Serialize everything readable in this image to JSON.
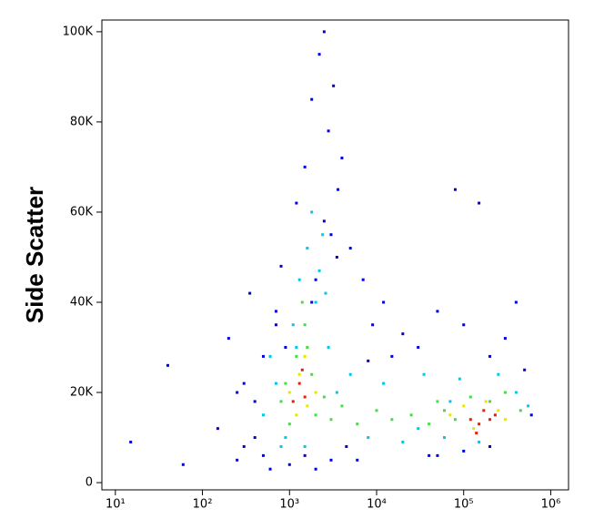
{
  "chart_data": {
    "type": "scatter",
    "y_label": "Side Scatter",
    "log_x": true,
    "xlim": [
      7,
      1600000
    ],
    "ylim": [
      -1600,
      102600
    ],
    "xticks": [
      {
        "value": 10,
        "label": "10¹"
      },
      {
        "value": 100,
        "label": "10²"
      },
      {
        "value": 1000,
        "label": "10³"
      },
      {
        "value": 10000,
        "label": "10⁴"
      },
      {
        "value": 100000,
        "label": "10⁵"
      },
      {
        "value": 1000000,
        "label": "10⁶"
      }
    ],
    "yticks": [
      0,
      {
        "value": 20000,
        "label": "20K"
      },
      {
        "value": 40000,
        "label": "40K"
      },
      {
        "value": 60000,
        "label": "60K"
      },
      {
        "value": 80000,
        "label": "80K"
      },
      {
        "value": 100000,
        "label": "100K"
      }
    ],
    "series": [
      {
        "color": "#0000dd",
        "x": [
          15,
          40,
          60,
          150,
          200,
          250,
          300,
          350,
          400,
          500,
          600,
          700,
          800,
          900,
          1200,
          1500,
          1800,
          2200,
          2500,
          2800,
          3200,
          3600,
          4000,
          5000,
          7000,
          9000,
          12000,
          20000,
          30000,
          50000,
          80000,
          100000,
          150000,
          200000,
          300000,
          400000,
          500000,
          600000,
          250,
          400,
          1000,
          2000,
          3000,
          2500,
          3500,
          1800,
          2000,
          3000,
          4500,
          8000,
          50000,
          100000,
          200000,
          300,
          500,
          700,
          1500,
          6000,
          15000,
          40000
        ],
        "values": [
          9000,
          26000,
          4000,
          12000,
          32000,
          20000,
          8000,
          42000,
          18000,
          6000,
          3000,
          38000,
          48000,
          30000,
          62000,
          70000,
          85000,
          95000,
          100000,
          78000,
          88000,
          65000,
          72000,
          52000,
          45000,
          35000,
          40000,
          33000,
          30000,
          38000,
          65000,
          35000,
          62000,
          28000,
          32000,
          40000,
          25000,
          15000,
          5000,
          10000,
          4000,
          3000,
          55000,
          58000,
          50000,
          40000,
          45000,
          5000,
          8000,
          27000,
          6000,
          7000,
          8000,
          22000,
          28000,
          35000,
          6000,
          5000,
          28000,
          6000
        ]
      },
      {
        "color": "#00c8e6",
        "x": [
          500,
          700,
          900,
          1100,
          1300,
          1600,
          2000,
          2400,
          2800,
          3500,
          1500,
          1800,
          2200,
          600,
          800,
          5000,
          8000,
          12000,
          20000,
          35000,
          60000,
          90000,
          150000,
          250000,
          400000,
          550000,
          30000,
          70000,
          1200,
          2600
        ],
        "values": [
          15000,
          22000,
          10000,
          35000,
          45000,
          52000,
          40000,
          55000,
          30000,
          20000,
          8000,
          60000,
          47000,
          28000,
          8000,
          24000,
          10000,
          22000,
          9000,
          24000,
          10000,
          23000,
          9000,
          24000,
          20000,
          17000,
          12000,
          18000,
          30000,
          42000
        ]
      },
      {
        "color": "#44dd44",
        "x": [
          800,
          1000,
          1200,
          1500,
          1800,
          2000,
          1400,
          2500,
          3000,
          4000,
          6000,
          10000,
          15000,
          25000,
          40000,
          60000,
          80000,
          120000,
          200000,
          300000,
          450000,
          1600,
          900,
          50000
        ],
        "values": [
          18000,
          13000,
          28000,
          35000,
          24000,
          15000,
          40000,
          19000,
          14000,
          17000,
          13000,
          16000,
          14000,
          15000,
          13000,
          16000,
          14000,
          19000,
          18000,
          20000,
          16000,
          30000,
          22000,
          18000
        ]
      },
      {
        "color": "#e6e600",
        "x": [
          1000,
          1300,
          1600,
          1200,
          2000,
          70000,
          100000,
          130000,
          180000,
          250000,
          300000,
          1500
        ],
        "values": [
          20000,
          24000,
          17000,
          15000,
          20000,
          15000,
          17000,
          12000,
          18000,
          16000,
          14000,
          28000
        ]
      },
      {
        "color": "#e62000",
        "x": [
          1100,
          1300,
          1500,
          120000,
          150000,
          170000,
          200000,
          140000,
          230000,
          1400
        ],
        "values": [
          18000,
          22000,
          19000,
          14000,
          13000,
          16000,
          14000,
          11000,
          15000,
          25000
        ]
      }
    ]
  }
}
